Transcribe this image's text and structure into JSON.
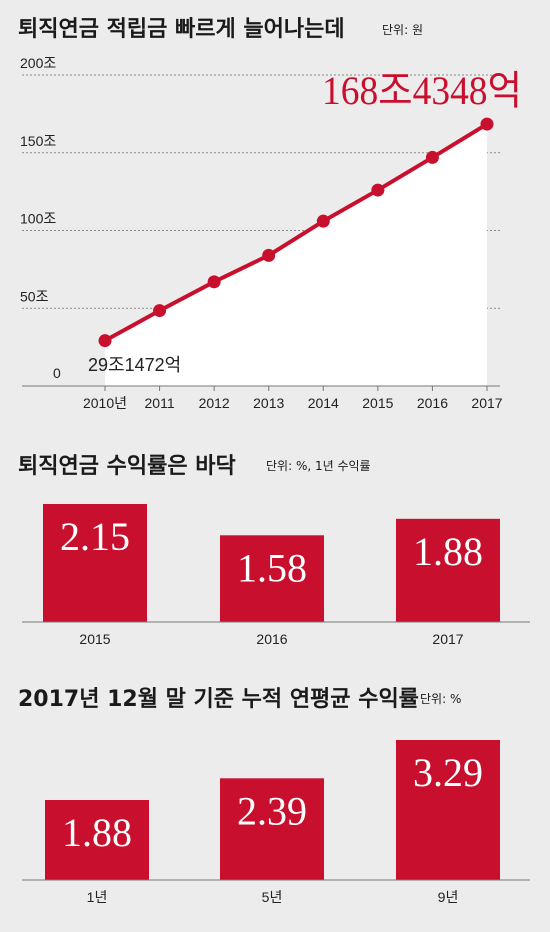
{
  "colors": {
    "accent": "#c8102e",
    "background": "#ececec",
    "area": "#ffffff"
  },
  "chart_data": [
    {
      "type": "line",
      "title": "퇴직연금 적립금 빠르게 늘어나는데",
      "unit": "단위: 원",
      "x": [
        "2010년",
        "2011",
        "2012",
        "2013",
        "2014",
        "2015",
        "2016",
        "2017"
      ],
      "values": [
        29.1472,
        48.5,
        67,
        84,
        106,
        126,
        147,
        168.4348
      ],
      "y_ticks": [
        "0",
        "50조",
        "100조",
        "150조",
        "200조"
      ],
      "ylim": [
        0,
        200
      ],
      "grid": true,
      "annotations": {
        "start": "29조1472억",
        "end": "168조4348억"
      }
    },
    {
      "type": "bar",
      "title": "퇴직연금 수익률은 바닥",
      "unit": "단위: %, 1년 수익률",
      "categories": [
        "2015",
        "2016",
        "2017"
      ],
      "values": [
        2.15,
        1.58,
        1.88
      ],
      "labels": [
        "2.15",
        "1.58",
        "1.88"
      ]
    },
    {
      "type": "bar",
      "title": "2017년 12월 말 기준 누적 연평균 수익률",
      "unit": "단위: %",
      "categories": [
        "1년",
        "5년",
        "9년"
      ],
      "values": [
        1.88,
        2.39,
        3.29
      ],
      "labels": [
        "1.88",
        "2.39",
        "3.29"
      ]
    }
  ]
}
